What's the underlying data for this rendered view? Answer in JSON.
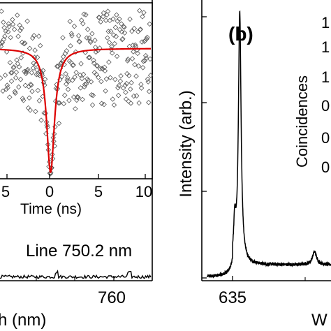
{
  "chart_data": [
    {
      "id": "left_main",
      "type": "line",
      "xlabel": "h (nm)",
      "ylabel": "",
      "x_ticks": [
        "760"
      ],
      "annotation": "Line 750.2 nm",
      "xlim": [
        746,
        767
      ],
      "ylim": [
        0,
        1
      ],
      "baseline_level": 0.05
    },
    {
      "id": "left_inset",
      "type": "scatter",
      "xlabel": "Time (ns)",
      "ylabel": "",
      "xlim": [
        -5.8,
        11.5
      ],
      "ylim": [
        0,
        1.35
      ],
      "x_ticks": [
        "5",
        "0",
        "5",
        "10"
      ],
      "x_tick_values": [
        -5,
        0,
        5,
        10
      ],
      "series": [
        {
          "kind": "fit",
          "color": "#dd0000",
          "baseline": 1.0,
          "dip_min": 0.05,
          "width_ns": 0.55
        }
      ],
      "scatter_band": [
        0.55,
        1.3
      ]
    },
    {
      "id": "right_main",
      "type": "line",
      "panel_label": "(b)",
      "xlabel": "W",
      "ylabel": "Intensity (arb.)",
      "x_ticks": [
        "635"
      ],
      "x_tick_values": [
        635
      ],
      "xlim": [
        630,
        670
      ],
      "ylim": [
        0,
        1
      ],
      "peaks": [
        {
          "center": 640.6,
          "height": 0.95,
          "width": 0.45
        },
        {
          "center": 639.2,
          "height": 0.14,
          "width": 0.35
        },
        {
          "center": 661.5,
          "height": 0.05,
          "width": 0.7
        }
      ],
      "baseline_level": 0.06
    },
    {
      "id": "right_inset",
      "type": "scatter",
      "ylabel": "Coincidences",
      "y_ticks": [
        "1",
        "1",
        "1",
        "0",
        "0",
        "0"
      ]
    }
  ]
}
